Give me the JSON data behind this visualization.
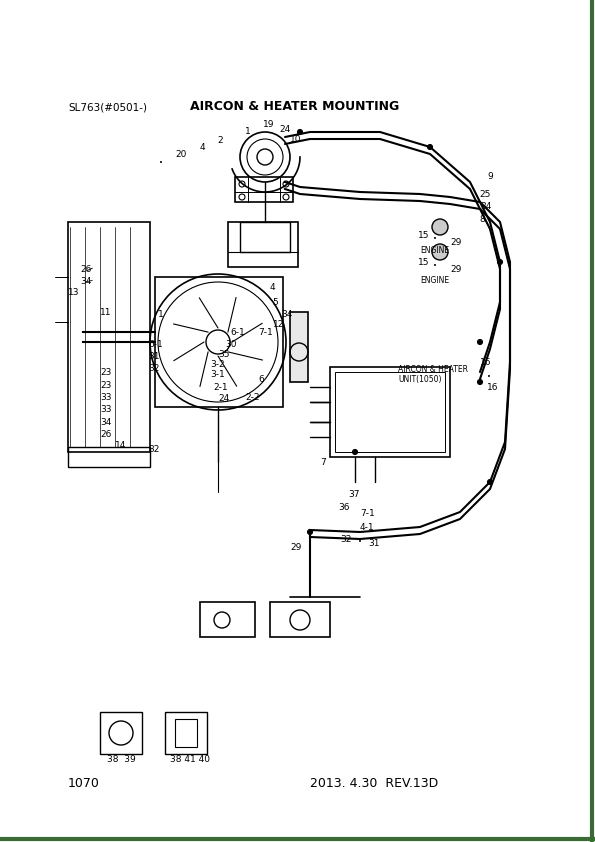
{
  "title": "AIRCON & HEATER MOUNTING",
  "subtitle": "SL763(#0501-)",
  "page_number": "1070",
  "date_rev": "2013. 4.30  REV.13D",
  "bg_color": "#ffffff",
  "border_color": "#3a6b35",
  "text_color": "#000000",
  "line_color": "#000000",
  "fig_width": 5.95,
  "fig_height": 8.42,
  "dpi": 100
}
